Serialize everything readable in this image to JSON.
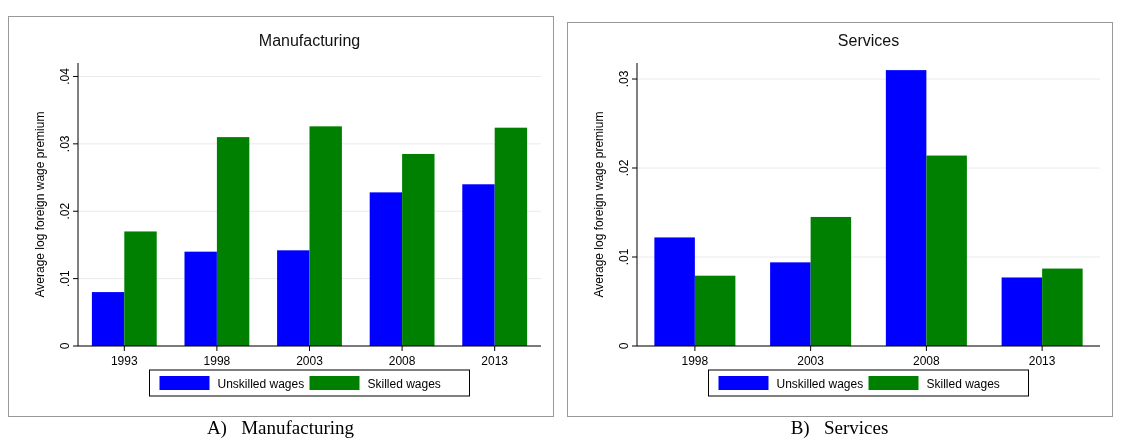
{
  "chart_data": [
    {
      "type": "bar",
      "title": "Manufacturing",
      "ylabel": "Average log foreign wage premium",
      "categories": [
        "1993",
        "1998",
        "2003",
        "2008",
        "2013"
      ],
      "series": [
        {
          "name": "Unskilled wages",
          "color": "#0000ff",
          "values": [
            0.008,
            0.014,
            0.0142,
            0.0228,
            0.024
          ]
        },
        {
          "name": "Skilled wages",
          "color": "#008000",
          "values": [
            0.017,
            0.031,
            0.0326,
            0.0285,
            0.0324
          ]
        }
      ],
      "ylim": [
        0,
        0.042
      ],
      "yticks": [
        0,
        {
          "value": 0.01,
          "label": ".01"
        },
        {
          "value": 0.02,
          "label": ".02"
        },
        {
          "value": 0.03,
          "label": ".03"
        },
        {
          "value": 0.04,
          "label": ".04"
        }
      ],
      "grid": "y",
      "legend": "bottom",
      "annotations": [
        "A)   Manufacturing"
      ]
    },
    {
      "type": "bar",
      "title": "Services",
      "ylabel": "Average log foreign wage premium",
      "categories": [
        "1998",
        "2003",
        "2008",
        "2013"
      ],
      "series": [
        {
          "name": "Unskilled wages",
          "color": "#0000ff",
          "values": [
            0.0122,
            0.0094,
            0.031,
            0.0077
          ]
        },
        {
          "name": "Skilled wages",
          "color": "#008000",
          "values": [
            0.0079,
            0.0145,
            0.0214,
            0.0087
          ]
        }
      ],
      "ylim": [
        0,
        0.0318
      ],
      "yticks": [
        0,
        {
          "value": 0.01,
          "label": ".01"
        },
        {
          "value": 0.02,
          "label": ".02"
        },
        {
          "value": 0.03,
          "label": ".03"
        }
      ],
      "grid": "y",
      "legend": "bottom",
      "annotations": [
        "B)   Services"
      ]
    }
  ]
}
